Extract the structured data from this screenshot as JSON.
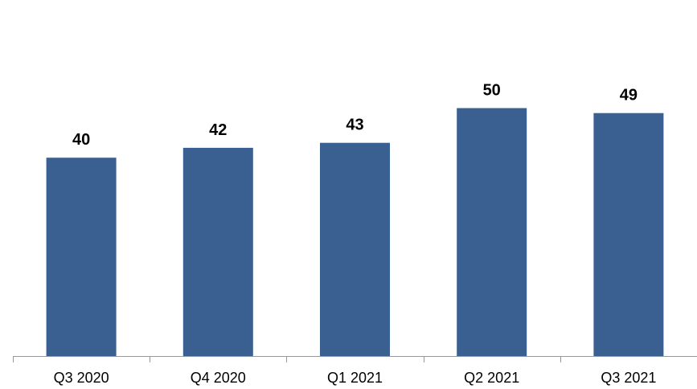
{
  "chart_data": {
    "type": "bar",
    "categories": [
      "Q3 2020",
      "Q4 2020",
      "Q1 2021",
      "Q2 2021",
      "Q3 2021"
    ],
    "values": [
      40,
      42,
      43,
      50,
      49
    ],
    "data_labels": [
      "40",
      "42",
      "43",
      "50",
      "49"
    ],
    "title": "",
    "xlabel": "",
    "ylabel": "",
    "ylim": [
      0,
      65
    ],
    "grid": false,
    "legend": "none",
    "colors": {
      "bar": "#3a6091",
      "axis": "#999999",
      "text": "#000000"
    }
  }
}
